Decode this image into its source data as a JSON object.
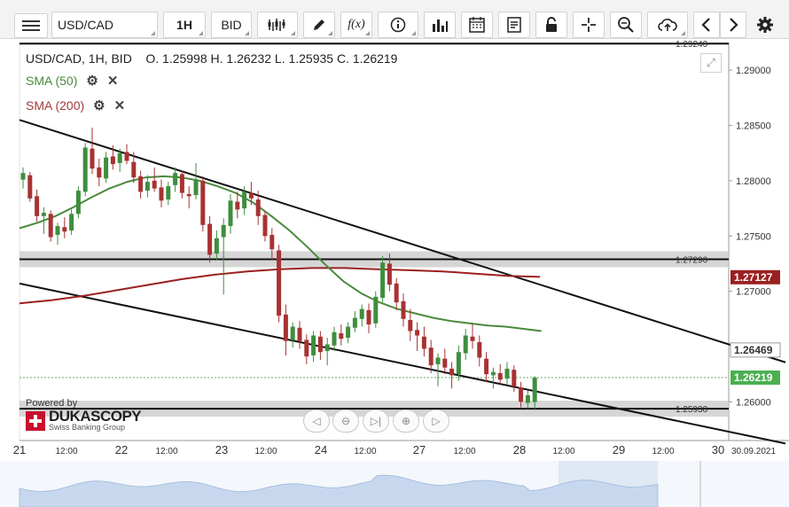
{
  "toolbar": {
    "menu_icon": "hamburger-icon",
    "instrument": "USD/CAD",
    "timeframe": "1H",
    "price_side": "BID",
    "icons": [
      "candlestick-icon",
      "pencil-icon",
      "function-icon",
      "info-icon",
      "bar-chart-icon",
      "calendar-icon",
      "document-icon",
      "lock-icon",
      "crosshair-icon",
      "zoom-icon",
      "cloud-upload-icon",
      "arrow-left-icon",
      "arrow-right-icon",
      "gear-icon"
    ]
  },
  "legend": {
    "ohlc": "USD/CAD, 1H, BID    O. 1.25998 H. 1.26232 L. 1.25935 C. 1.26219",
    "sma50": "SMA (50)",
    "sma200": "SMA (200)"
  },
  "branding": {
    "powered_by": "Powered by",
    "name": "DUKASCOPY",
    "sub": "Swiss Banking Group"
  },
  "colors": {
    "sma50": "#4a8a3c",
    "sma200": "#9b2020",
    "bull": "#3e8e3e",
    "bear": "#a83232",
    "current_price": "#4caf50"
  },
  "chart_data": {
    "type": "candlestick",
    "instrument": "USD/CAD",
    "timeframe": "1H",
    "ylim": [
      1.2565,
      1.2925
    ],
    "y_ticks": [
      "1.29000",
      "1.28500",
      "1.28000",
      "1.27500",
      "1.27000",
      "1.26000"
    ],
    "x_ticks": [
      "21",
      "12:00",
      "22",
      "12:00",
      "23",
      "12:00",
      "24",
      "12:00",
      "27",
      "12:00",
      "28",
      "12:00",
      "29",
      "12:00",
      "30",
      "30.09.2021"
    ],
    "price_labels": {
      "top_line": "1.29240",
      "resistance": "1.27290",
      "sma200": "1.27127",
      "sma50": "1.26469",
      "current": "1.26219",
      "support": "1.25938"
    },
    "horizontal_levels": [
      1.2924,
      1.2729,
      1.25938
    ],
    "channel_lines": [
      {
        "from": [
          0,
          1.2855
        ],
        "to": [
          1,
          1.2652
        ]
      },
      {
        "from": [
          0,
          1.2707
        ],
        "to": [
          1,
          1.2573
        ]
      }
    ],
    "candles": [
      [
        1.2801,
        1.2812,
        1.2793,
        1.2807
      ],
      [
        1.2805,
        1.2808,
        1.2781,
        1.2784
      ],
      [
        1.2786,
        1.2792,
        1.2763,
        1.2768
      ],
      [
        1.2768,
        1.2776,
        1.2752,
        1.2771
      ],
      [
        1.277,
        1.2773,
        1.2745,
        1.2749
      ],
      [
        1.2751,
        1.2762,
        1.2742,
        1.2759
      ],
      [
        1.2758,
        1.2767,
        1.2748,
        1.2754
      ],
      [
        1.2755,
        1.2774,
        1.2751,
        1.277
      ],
      [
        1.277,
        1.2795,
        1.2766,
        1.2791
      ],
      [
        1.279,
        1.2834,
        1.2786,
        1.283
      ],
      [
        1.2829,
        1.2848,
        1.2806,
        1.2811
      ],
      [
        1.2812,
        1.282,
        1.2795,
        1.2803
      ],
      [
        1.2802,
        1.2826,
        1.2798,
        1.2821
      ],
      [
        1.2822,
        1.2832,
        1.281,
        1.2815
      ],
      [
        1.2816,
        1.2829,
        1.2808,
        1.2825
      ],
      [
        1.2826,
        1.2833,
        1.2815,
        1.2818
      ],
      [
        1.2817,
        1.2826,
        1.2798,
        1.2803
      ],
      [
        1.2804,
        1.2809,
        1.2784,
        1.279
      ],
      [
        1.2791,
        1.2805,
        1.2785,
        1.2799
      ],
      [
        1.28,
        1.2812,
        1.279,
        1.2793
      ],
      [
        1.2794,
        1.2801,
        1.2776,
        1.2782
      ],
      [
        1.2783,
        1.2799,
        1.2778,
        1.2795
      ],
      [
        1.2796,
        1.2812,
        1.279,
        1.2807
      ],
      [
        1.2806,
        1.2809,
        1.2784,
        1.2789
      ],
      [
        1.2788,
        1.2795,
        1.2775,
        1.2786
      ],
      [
        1.2787,
        1.2816,
        1.2783,
        1.2801
      ],
      [
        1.28,
        1.2804,
        1.2754,
        1.276
      ],
      [
        1.2761,
        1.2768,
        1.2726,
        1.2733
      ],
      [
        1.2734,
        1.2755,
        1.2728,
        1.2748
      ],
      [
        1.2749,
        1.2766,
        1.2697,
        1.276
      ],
      [
        1.2759,
        1.2788,
        1.2752,
        1.2782
      ],
      [
        1.2781,
        1.279,
        1.2766,
        1.2774
      ],
      [
        1.2775,
        1.2795,
        1.2769,
        1.279
      ],
      [
        1.2789,
        1.2799,
        1.2778,
        1.2784
      ],
      [
        1.2783,
        1.2791,
        1.276,
        1.2768
      ],
      [
        1.2769,
        1.2773,
        1.2745,
        1.275
      ],
      [
        1.2751,
        1.2757,
        1.2728,
        1.2738
      ],
      [
        1.2737,
        1.2742,
        1.2672,
        1.2678
      ],
      [
        1.2679,
        1.2688,
        1.2642,
        1.2655
      ],
      [
        1.2656,
        1.2672,
        1.2649,
        1.2668
      ],
      [
        1.2667,
        1.2673,
        1.2648,
        1.2655
      ],
      [
        1.2656,
        1.2661,
        1.2634,
        1.2641
      ],
      [
        1.2642,
        1.2664,
        1.2636,
        1.266
      ],
      [
        1.2659,
        1.2664,
        1.2638,
        1.2645
      ],
      [
        1.2646,
        1.2658,
        1.2633,
        1.2652
      ],
      [
        1.2651,
        1.2668,
        1.2646,
        1.2663
      ],
      [
        1.2662,
        1.267,
        1.2651,
        1.2657
      ],
      [
        1.2658,
        1.2672,
        1.2653,
        1.2668
      ],
      [
        1.2667,
        1.2682,
        1.2663,
        1.2676
      ],
      [
        1.2675,
        1.2688,
        1.2668,
        1.2684
      ],
      [
        1.2683,
        1.2689,
        1.2662,
        1.267
      ],
      [
        1.2671,
        1.27,
        1.2667,
        1.2695
      ],
      [
        1.2694,
        1.2732,
        1.269,
        1.2726
      ],
      [
        1.2725,
        1.2734,
        1.27,
        1.2706
      ],
      [
        1.2707,
        1.2712,
        1.2683,
        1.269
      ],
      [
        1.2691,
        1.2698,
        1.2668,
        1.2675
      ],
      [
        1.2674,
        1.2684,
        1.2655,
        1.2664
      ],
      [
        1.2665,
        1.2672,
        1.2646,
        1.266
      ],
      [
        1.2659,
        1.2668,
        1.2641,
        1.2648
      ],
      [
        1.2649,
        1.2656,
        1.2626,
        1.2633
      ],
      [
        1.2634,
        1.2644,
        1.2614,
        1.264
      ],
      [
        1.2639,
        1.2648,
        1.2625,
        1.2631
      ],
      [
        1.263,
        1.2636,
        1.2612,
        1.2624
      ],
      [
        1.2625,
        1.2651,
        1.2619,
        1.2645
      ],
      [
        1.2644,
        1.2666,
        1.2638,
        1.266
      ],
      [
        1.2659,
        1.2671,
        1.2648,
        1.2655
      ],
      [
        1.2654,
        1.266,
        1.2632,
        1.264
      ],
      [
        1.2639,
        1.2645,
        1.2618,
        1.2625
      ],
      [
        1.2624,
        1.2631,
        1.2612,
        1.2627
      ],
      [
        1.2626,
        1.2634,
        1.2615,
        1.262
      ],
      [
        1.2621,
        1.2636,
        1.2616,
        1.263
      ],
      [
        1.2629,
        1.2633,
        1.2609,
        1.2614
      ],
      [
        1.2613,
        1.2618,
        1.2595,
        1.26
      ],
      [
        1.2599,
        1.261,
        1.2594,
        1.2606
      ],
      [
        1.25998,
        1.26232,
        1.25935,
        1.26219
      ]
    ],
    "sma50": [
      1.2757,
      1.2762,
      1.2768,
      1.2776,
      1.2785,
      1.2793,
      1.2799,
      1.2803,
      1.2804,
      1.2803,
      1.28,
      1.2795,
      1.2789,
      1.278,
      1.2768,
      1.2755,
      1.274,
      1.2724,
      1.2709,
      1.2698,
      1.269,
      1.2684,
      1.268,
      1.2676,
      1.2673,
      1.2671,
      1.2669,
      1.2668,
      1.2666,
      1.2664
    ],
    "sma200": [
      1.2689,
      1.2692,
      1.2696,
      1.2701,
      1.2706,
      1.2711,
      1.2715,
      1.2718,
      1.272,
      1.2721,
      1.2721,
      1.272,
      1.2719,
      1.2718,
      1.2716,
      1.2714,
      1.2713
    ]
  }
}
